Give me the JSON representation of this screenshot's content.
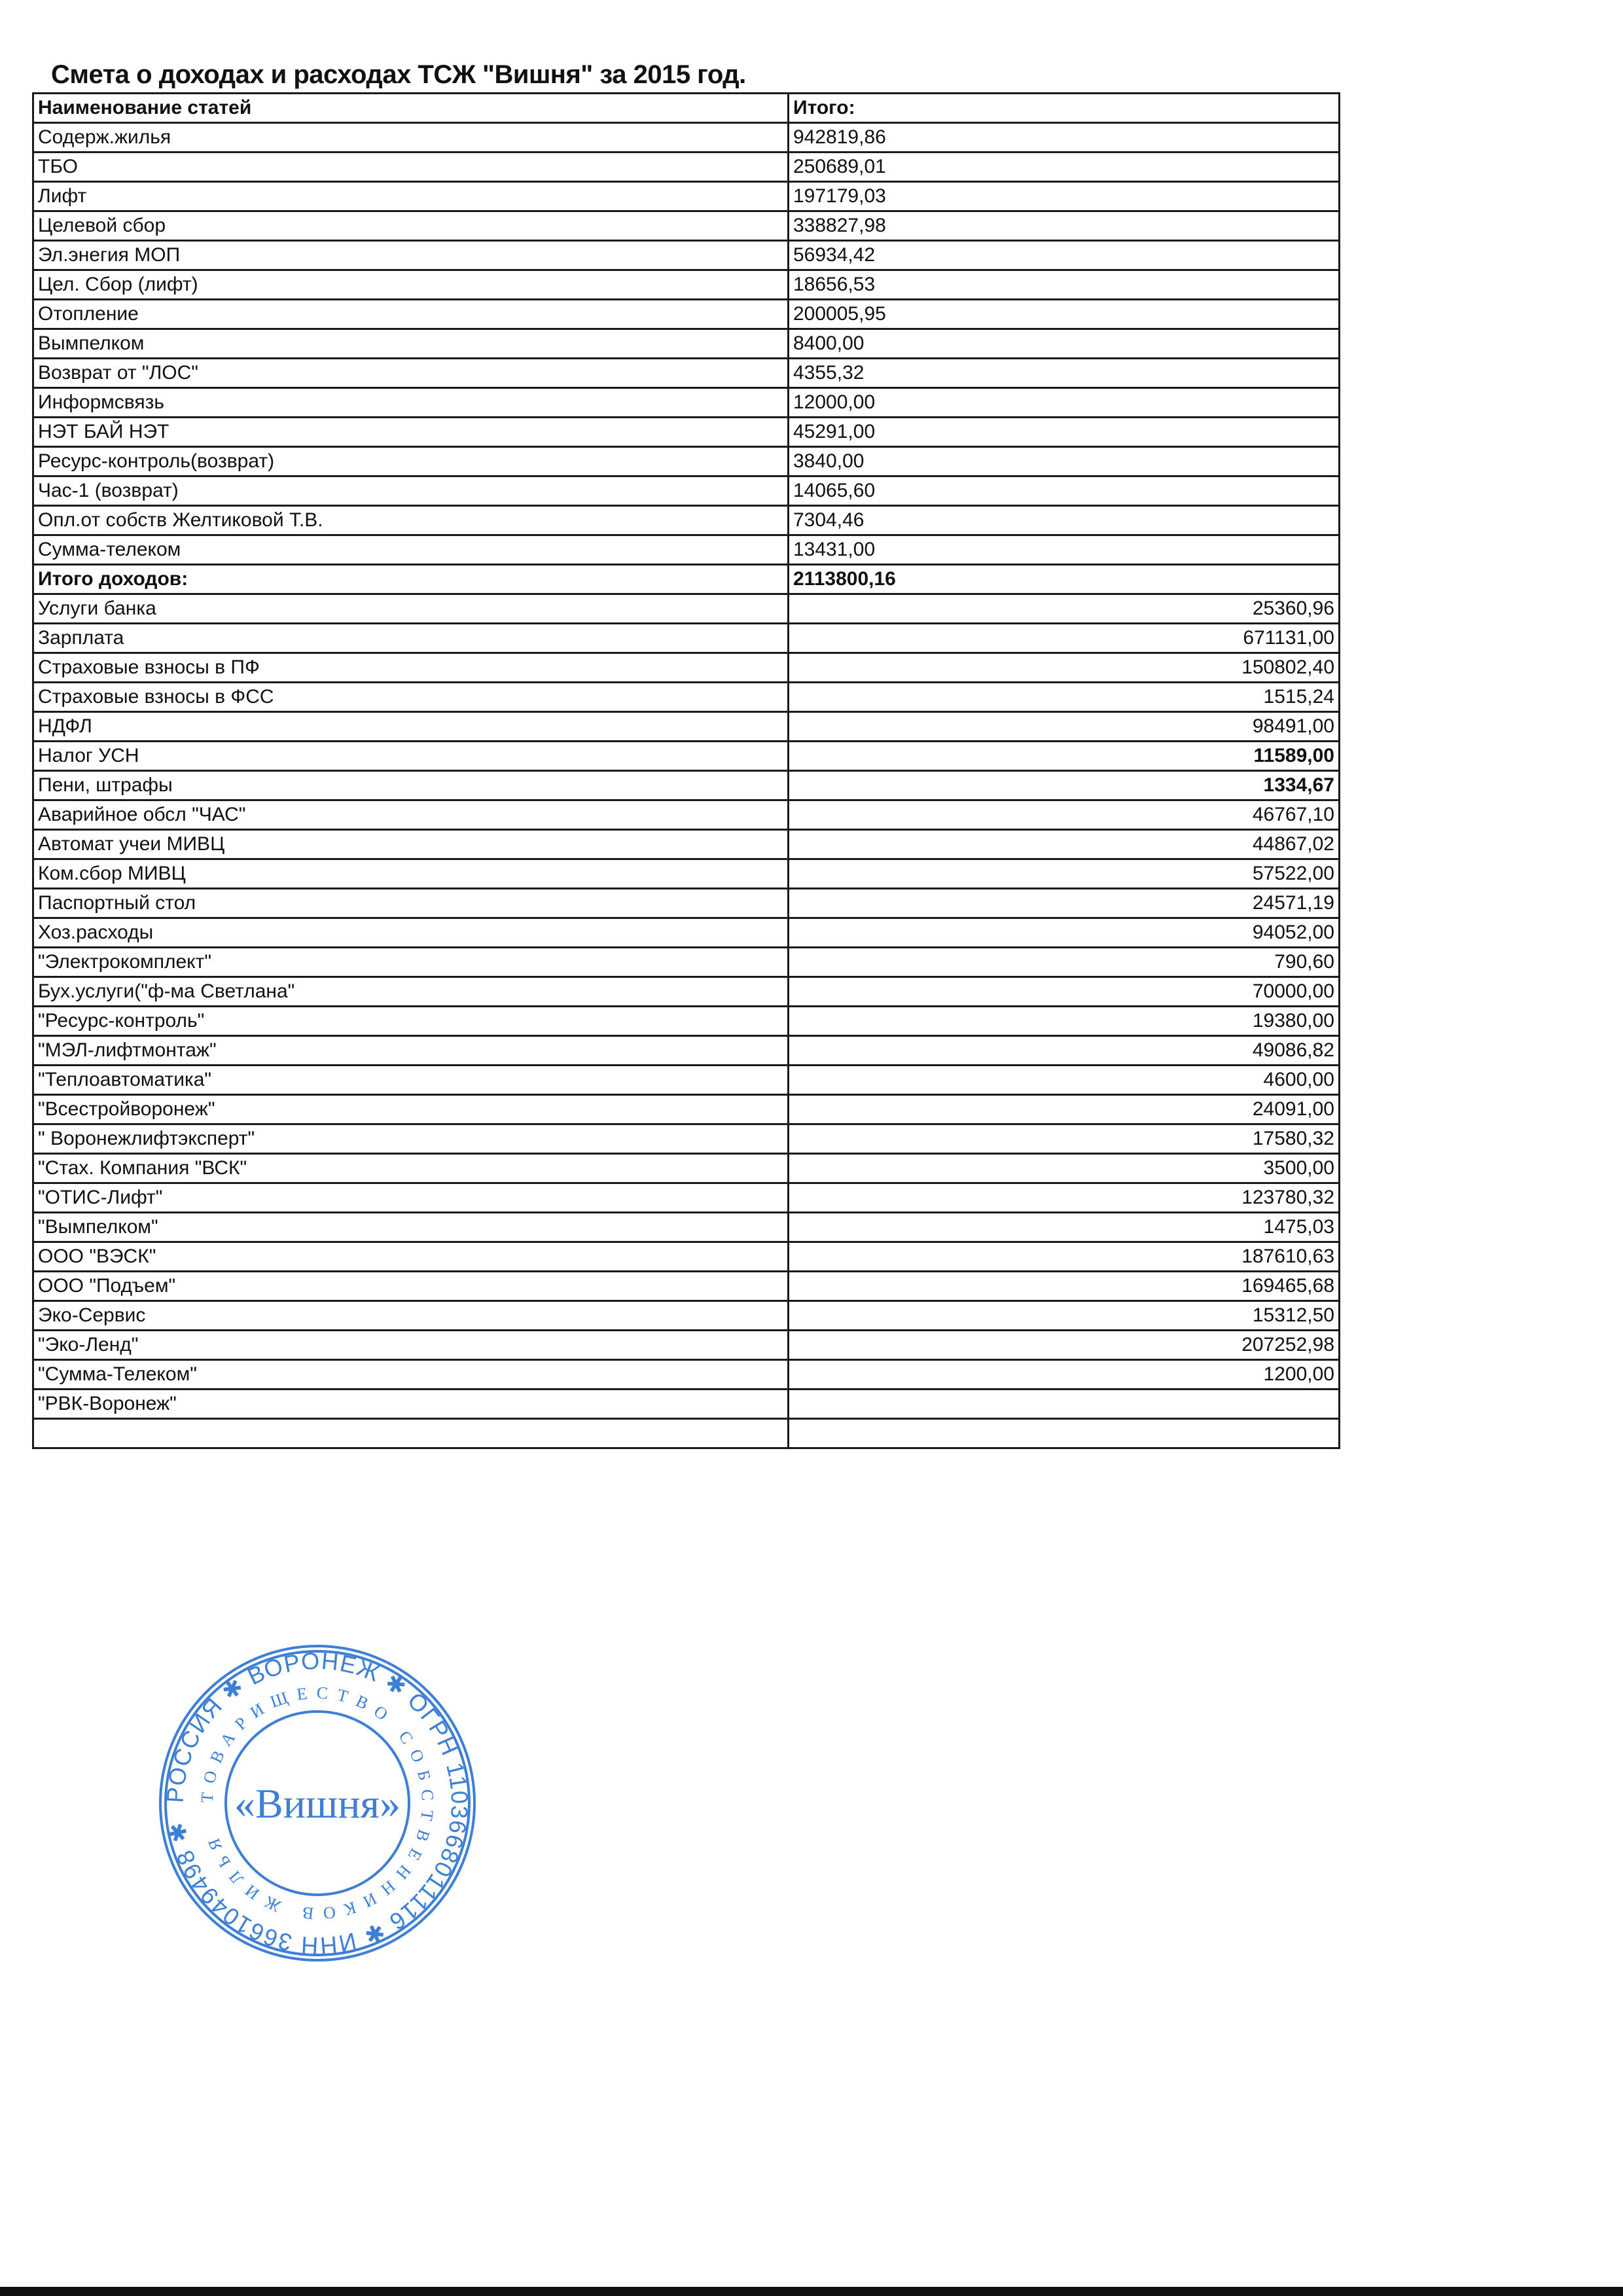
{
  "title": "Смета о доходах и расходах ТСЖ \"Вишня\" за 2015 год.",
  "header": {
    "name": "Наименование статей",
    "total": "Итого:"
  },
  "income": [
    {
      "name": "Содерж.жилья",
      "value": "942819,86"
    },
    {
      "name": "ТБО",
      "value": "250689,01"
    },
    {
      "name": "Лифт",
      "value": "197179,03"
    },
    {
      "name": "Целевой сбор",
      "value": "338827,98"
    },
    {
      "name": "Эл.энегия МОП",
      "value": "56934,42"
    },
    {
      "name": "Цел. Сбор (лифт)",
      "value": "18656,53"
    },
    {
      "name": "Отопление",
      "value": "200005,95"
    },
    {
      "name": "Вымпелком",
      "value": "8400,00"
    },
    {
      "name": "Возврат от \"ЛОС\"",
      "value": "4355,32"
    },
    {
      "name": "Информсвязь",
      "value": "12000,00"
    },
    {
      "name": "НЭТ БАЙ НЭТ",
      "value": "45291,00"
    },
    {
      "name": "Ресурс-контроль(возврат)",
      "value": "3840,00"
    },
    {
      "name": "Час-1 (возврат)",
      "value": "14065,60"
    },
    {
      "name": "Опл.от собств      Желтиковой Т.В.",
      "value": "7304,46"
    },
    {
      "name": "Сумма-телеком",
      "value": "13431,00"
    }
  ],
  "income_total": {
    "name": "Итого доходов:",
    "value": "2113800,16"
  },
  "expenses": [
    {
      "name": "Услуги банка",
      "value": "25360,96"
    },
    {
      "name": "Зарплата",
      "value": "671131,00"
    },
    {
      "name": "Страховые взносы в ПФ",
      "value": "150802,40"
    },
    {
      "name": "Страховые взносы в ФСС",
      "value": "1515,24"
    },
    {
      "name": "НДФЛ",
      "value": "98491,00"
    },
    {
      "name": "Налог УСН",
      "value": "11589,00",
      "bold": true
    },
    {
      "name": "Пени, штрафы",
      "value": "1334,67",
      "bold": true
    },
    {
      "name": "Аварийное обсл \"ЧАС\"",
      "value": "46767,10"
    },
    {
      "name": "Автомат учеи МИВЦ",
      "value": "44867,02"
    },
    {
      "name": "Ком.сбор МИВЦ",
      "value": "57522,00"
    },
    {
      "name": "Паспортный стол",
      "value": "24571,19"
    },
    {
      "name": "Хоз.расходы",
      "value": "94052,00"
    },
    {
      "name": "\"Электрокомплект\"",
      "value": "790,60"
    },
    {
      "name": "Бух.услуги(\"ф-ма Светлана\"",
      "value": "70000,00"
    },
    {
      "name": "\"Ресурс-контроль\"",
      "value": "19380,00"
    },
    {
      "name": "\"МЭЛ-лифтмонтаж\"",
      "value": "49086,82"
    },
    {
      "name": "\"Теплоавтоматика\"",
      "value": "4600,00"
    },
    {
      "name": "\"Всестройворонеж\"",
      "value": "24091,00"
    },
    {
      "name": "\" Воронежлифтэксперт\"",
      "value": "17580,32"
    },
    {
      "name": "\"Стах. Компания \"ВСК\"",
      "value": "3500,00"
    },
    {
      "name": "\"ОТИС-Лифт\"",
      "value": "123780,32"
    },
    {
      "name": "\"Вымпелком\"",
      "value": "1475,03"
    },
    {
      "name": "ООО \"ВЭСК\"",
      "value": "187610,63"
    },
    {
      "name": "ООО \"Подъем\"",
      "value": "169465,68"
    },
    {
      "name": "Эко-Сервис",
      "value": "15312,50"
    },
    {
      "name": "\"Эко-Ленд\"",
      "value": "207252,98"
    },
    {
      "name": "\"Сумма-Телеком\"",
      "value": "1200,00"
    },
    {
      "name": "\"РВК-Воронеж\"",
      "value": ""
    },
    {
      "name": "",
      "value": ""
    }
  ],
  "stamp": {
    "color": "#3d7fd6",
    "outer_text": "РОССИЯ ✱ ВОРОНЕЖ ✱ ОГРН 1103668011116 ✱ ИНН 3661049498 ✱",
    "inner_text": "ТОВАРИЩЕСТВО СОБСТВЕННИКОВ ЖИЛЬЯ",
    "center_text": "«Вишня»"
  }
}
